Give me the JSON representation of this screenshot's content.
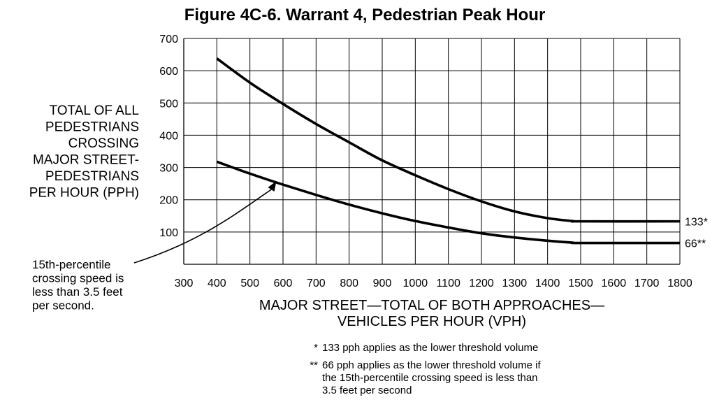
{
  "chart_data": {
    "type": "line",
    "title": "Figure 4C-6.  Warrant 4, Pedestrian Peak Hour",
    "ylabel_lines": [
      "TOTAL OF ALL",
      "PEDESTRIANS",
      "CROSSING",
      "MAJOR STREET-",
      "PEDESTRIANS",
      "PER HOUR (PPH)"
    ],
    "xlabel_lines": [
      "MAJOR STREET—TOTAL OF BOTH APPROACHES—",
      "VEHICLES PER HOUR (VPH)"
    ],
    "xlim": [
      300,
      1800
    ],
    "ylim": [
      0,
      700
    ],
    "xticks": [
      300,
      400,
      500,
      600,
      700,
      800,
      900,
      1000,
      1100,
      1200,
      1300,
      1400,
      1500,
      1600,
      1700,
      1800
    ],
    "yticks": [
      100,
      200,
      300,
      400,
      500,
      600,
      700
    ],
    "grid": true,
    "series": [
      {
        "end_label": "133*",
        "x": [
          400,
          500,
          600,
          700,
          800,
          900,
          1000,
          1100,
          1200,
          1300,
          1400,
          1475,
          1500,
          1800
        ],
        "y": [
          638,
          563,
          497,
          435,
          378,
          322,
          276,
          233,
          195,
          164,
          143,
          134,
          133,
          133
        ]
      },
      {
        "end_label": "66**",
        "x": [
          400,
          500,
          600,
          700,
          800,
          900,
          1000,
          1100,
          1200,
          1300,
          1400,
          1475,
          1500,
          1800
        ],
        "y": [
          318,
          281,
          247,
          215,
          185,
          158,
          134,
          114,
          96,
          83,
          73,
          67,
          66,
          66
        ]
      }
    ],
    "annotation": {
      "lines": [
        "15th-percentile",
        "crossing speed is",
        "less than 3.5 feet",
        "per second."
      ],
      "points_to": {
        "x": 580,
        "y": 258
      }
    },
    "footnotes": [
      {
        "mark": "*",
        "lines": [
          "133 pph applies as the lower threshold volume"
        ]
      },
      {
        "mark": "**",
        "lines": [
          "66 pph applies as the lower threshold volume if",
          "the 15th-percentile crossing speed is less than",
          "3.5 feet per second"
        ]
      }
    ]
  }
}
